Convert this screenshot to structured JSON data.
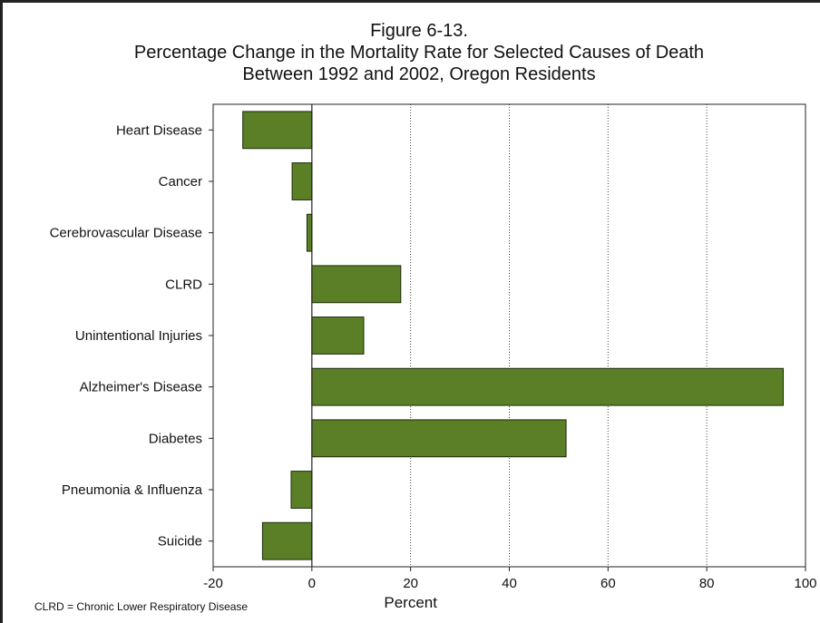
{
  "chart_data": {
    "type": "bar",
    "orientation": "horizontal",
    "title": "Figure 6-13.",
    "subtitle": [
      "Percentage Change in the Mortality Rate for Selected Causes of Death",
      "Between 1992 and 2002, Oregon Residents"
    ],
    "xlabel": "Percent",
    "ylabel": "",
    "categories": [
      "Heart Disease",
      "Cancer",
      "Cerebrovascular Disease",
      "CLRD",
      "Unintentional Injuries",
      "Alzheimer's Disease",
      "Diabetes",
      "Pneumonia & Influenza",
      "Suicide"
    ],
    "values": [
      -14,
      -4,
      -1,
      18,
      10.5,
      95.5,
      51.5,
      -4.2,
      -10
    ],
    "xlim": [
      -20,
      100
    ],
    "xticks": [
      -20,
      0,
      20,
      40,
      60,
      80,
      100
    ],
    "grid": "vertical dotted",
    "legend": "none",
    "bar_color": "#5b7f26",
    "footnote": "CLRD = Chronic Lower Respiratory Disease"
  }
}
